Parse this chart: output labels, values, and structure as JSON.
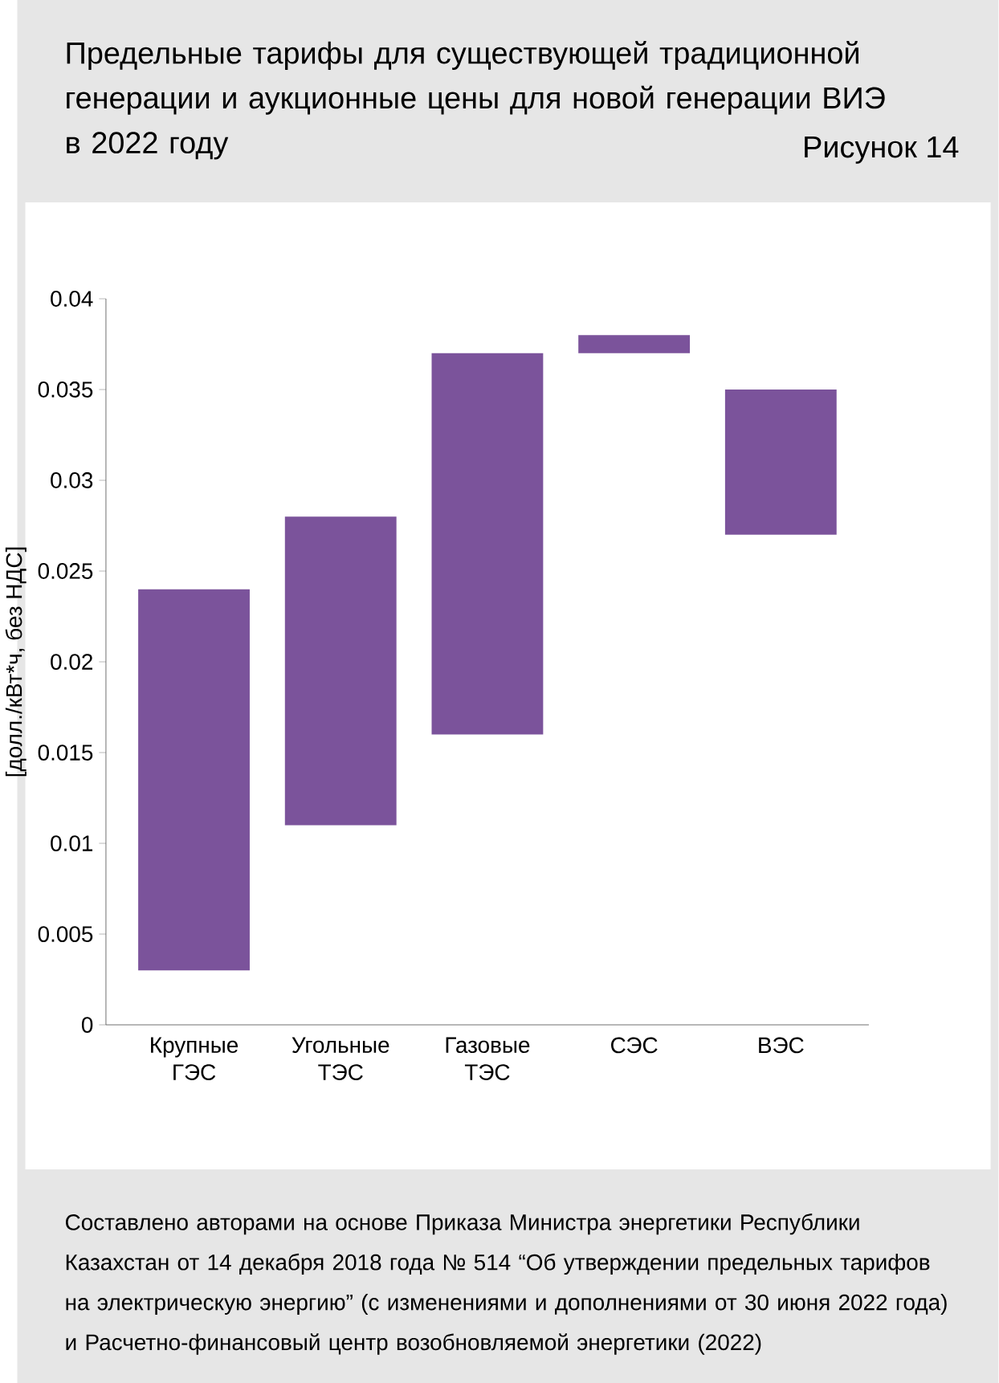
{
  "chart_data": {
    "type": "bar",
    "title": "Предельные тарифы для существующей традиционной генерации и аукционные цены для новой генерации ВИЭ в 2022 году",
    "ylabel": "[долл./кВт*ч, без НДС]",
    "categories": [
      "Крупные ГЭС",
      "Угольные ТЭС",
      "Газовые ТЭС",
      "СЭС",
      "ВЭС"
    ],
    "base": [
      0.003,
      0.011,
      0.016,
      0.037,
      0.027
    ],
    "values": [
      0.021,
      0.017,
      0.021,
      0.001,
      0.008
    ],
    "color": "#7b539b",
    "ylim": [
      0,
      0.04
    ],
    "yticks": [
      0,
      0.005,
      0.01,
      0.015,
      0.02,
      0.025,
      0.03,
      0.035,
      0.04
    ],
    "annotations": [
      "Рисунок 14",
      "Составлено авторами на основе Приказа Министра энергетики Республики Казахстан от 14 декабря 2018 года № 514 “Об утверждении предельных тарифов на электрическую энергию” (с изменениями и дополнениями от 30 июня 2022 года) и Расчетно-финансовый центр возобновляемой энергетики (2022)"
    ]
  }
}
